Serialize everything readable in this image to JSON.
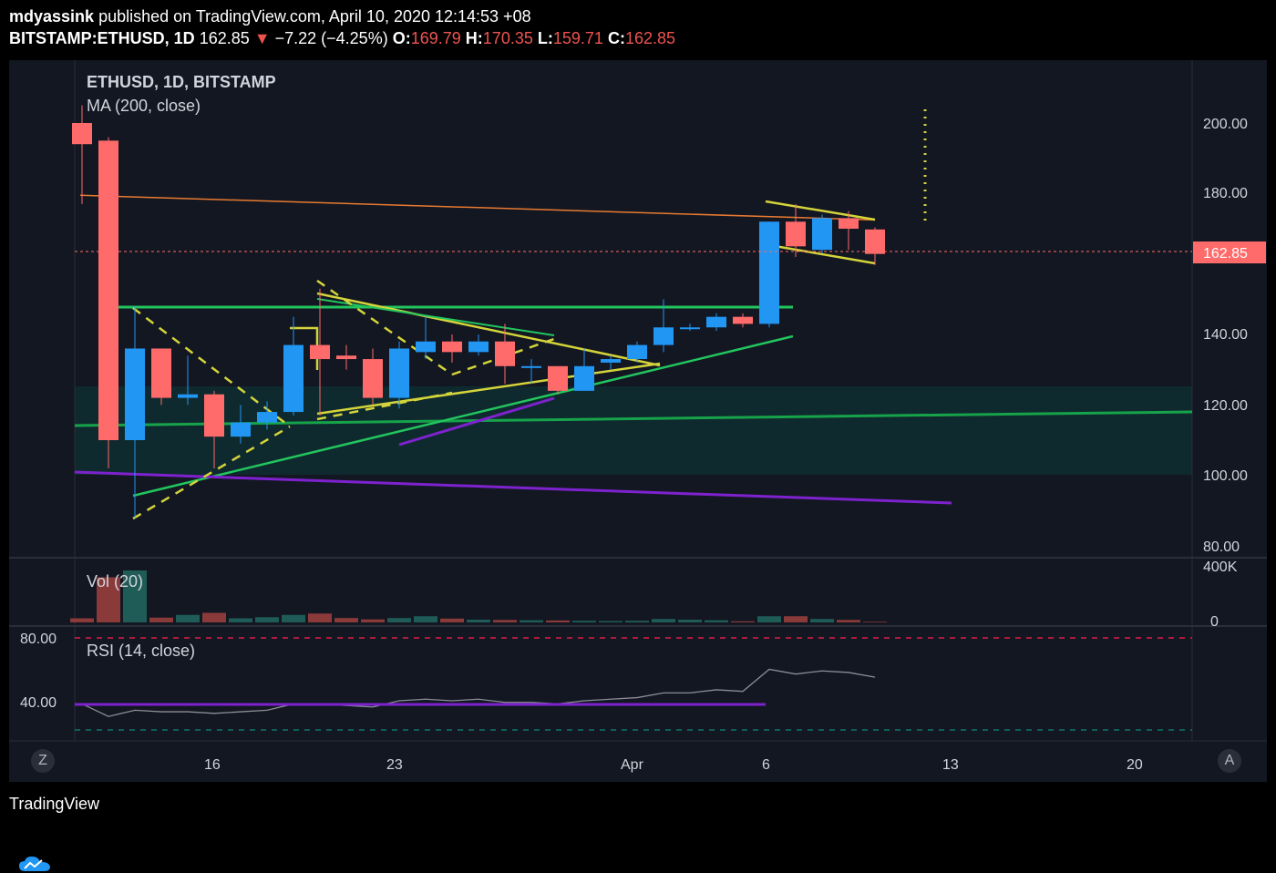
{
  "header": {
    "author": "mdyassink",
    "published_text": "published on TradingView.com, April 10, 2020 12:14:53 +08",
    "symbol": "BITSTAMP:ETHUSD, 1D",
    "last": "162.85",
    "arrow": "▼",
    "change": "−7.22 (−4.25%)",
    "o_label": "O:",
    "o": "169.79",
    "h_label": "H:",
    "h": "170.35",
    "l_label": "L:",
    "l": "159.71",
    "c_label": "C:",
    "c": "162.85"
  },
  "main_pane": {
    "title": "ETHUSD, 1D, BITSTAMP",
    "indicator": "MA (200, close)",
    "price_ticks": [
      "200.00",
      "180.00",
      "140.00",
      "120.00",
      "100.00",
      "80.00"
    ],
    "price_tag": "162.85"
  },
  "volume_pane": {
    "label": "Vol (20)",
    "ticks": [
      "400K",
      "0"
    ]
  },
  "rsi_pane": {
    "label": "RSI (14, close)",
    "ticks": [
      "80.00",
      "40.00"
    ]
  },
  "time_axis": [
    "16",
    "23",
    "Apr",
    "6",
    "13",
    "20"
  ],
  "corner_buttons": {
    "left": "Z",
    "right": "A"
  },
  "footer": {
    "brand": "TradingView"
  },
  "colors": {
    "up": "#2196f3",
    "down": "#ff6b6b",
    "support_band": "#0f2a2e",
    "green_line": "#22c55e",
    "purple_line": "#7e22ce",
    "yellow_line": "#d4d43a",
    "ma_line": "#e87a30"
  },
  "chart_data": {
    "type": "candlestick",
    "candles": [
      {
        "o": 200,
        "h": 205,
        "l": 177,
        "c": 194
      },
      {
        "o": 195,
        "h": 196,
        "l": 102,
        "c": 110
      },
      {
        "o": 110,
        "h": 148,
        "l": 88,
        "c": 136
      },
      {
        "o": 136,
        "h": 136,
        "l": 120,
        "c": 122
      },
      {
        "o": 122,
        "h": 134,
        "l": 120,
        "c": 123
      },
      {
        "o": 123,
        "h": 124,
        "l": 102,
        "c": 111
      },
      {
        "o": 111,
        "h": 120,
        "l": 109,
        "c": 115
      },
      {
        "o": 115,
        "h": 121,
        "l": 113,
        "c": 118
      },
      {
        "o": 118,
        "h": 145,
        "l": 117,
        "c": 137
      },
      {
        "o": 137,
        "h": 153,
        "l": 117,
        "c": 133
      },
      {
        "o": 134,
        "h": 137,
        "l": 130,
        "c": 133
      },
      {
        "o": 133,
        "h": 136,
        "l": 120,
        "c": 122
      },
      {
        "o": 122,
        "h": 138,
        "l": 119,
        "c": 136
      },
      {
        "o": 135,
        "h": 145,
        "l": 133,
        "c": 138
      },
      {
        "o": 138,
        "h": 140,
        "l": 132,
        "c": 135
      },
      {
        "o": 135,
        "h": 140,
        "l": 134,
        "c": 138
      },
      {
        "o": 138,
        "h": 143,
        "l": 126,
        "c": 131
      },
      {
        "o": 131,
        "h": 133,
        "l": 126,
        "c": 131
      },
      {
        "o": 131,
        "h": 131,
        "l": 123,
        "c": 124
      },
      {
        "o": 124,
        "h": 136,
        "l": 124,
        "c": 131
      },
      {
        "o": 132,
        "h": 134,
        "l": 130,
        "c": 133
      },
      {
        "o": 133,
        "h": 138,
        "l": 132,
        "c": 137
      },
      {
        "o": 137,
        "h": 150,
        "l": 135,
        "c": 142
      },
      {
        "o": 142,
        "h": 143,
        "l": 141,
        "c": 142
      },
      {
        "o": 142,
        "h": 146,
        "l": 141,
        "c": 145
      },
      {
        "o": 145,
        "h": 146,
        "l": 142,
        "c": 143
      },
      {
        "o": 143,
        "h": 172,
        "l": 142,
        "c": 172
      },
      {
        "o": 172,
        "h": 177,
        "l": 162,
        "c": 165
      },
      {
        "o": 164,
        "h": 174,
        "l": 163,
        "c": 173
      },
      {
        "o": 173,
        "h": 175,
        "l": 164,
        "c": 170
      },
      {
        "o": 169.79,
        "h": 170.35,
        "l": 159.71,
        "c": 162.85
      }
    ],
    "volume_k": [
      30,
      330,
      380,
      35,
      55,
      70,
      30,
      38,
      55,
      65,
      32,
      22,
      32,
      45,
      28,
      20,
      18,
      16,
      14,
      12,
      10,
      12,
      25,
      20,
      16,
      8,
      45,
      45,
      25,
      18,
      5
    ],
    "rsi": [
      38,
      30,
      34,
      33,
      33,
      32,
      33,
      34,
      38,
      38,
      37,
      36,
      40,
      41,
      40,
      41,
      39,
      39,
      38,
      40,
      41,
      42,
      45,
      45,
      47,
      46,
      60,
      57,
      59,
      58,
      55
    ],
    "ma200": [
      179.5,
      172.5
    ],
    "ylim": [
      76,
      215
    ],
    "rsi_ylim": [
      20,
      95
    ]
  }
}
